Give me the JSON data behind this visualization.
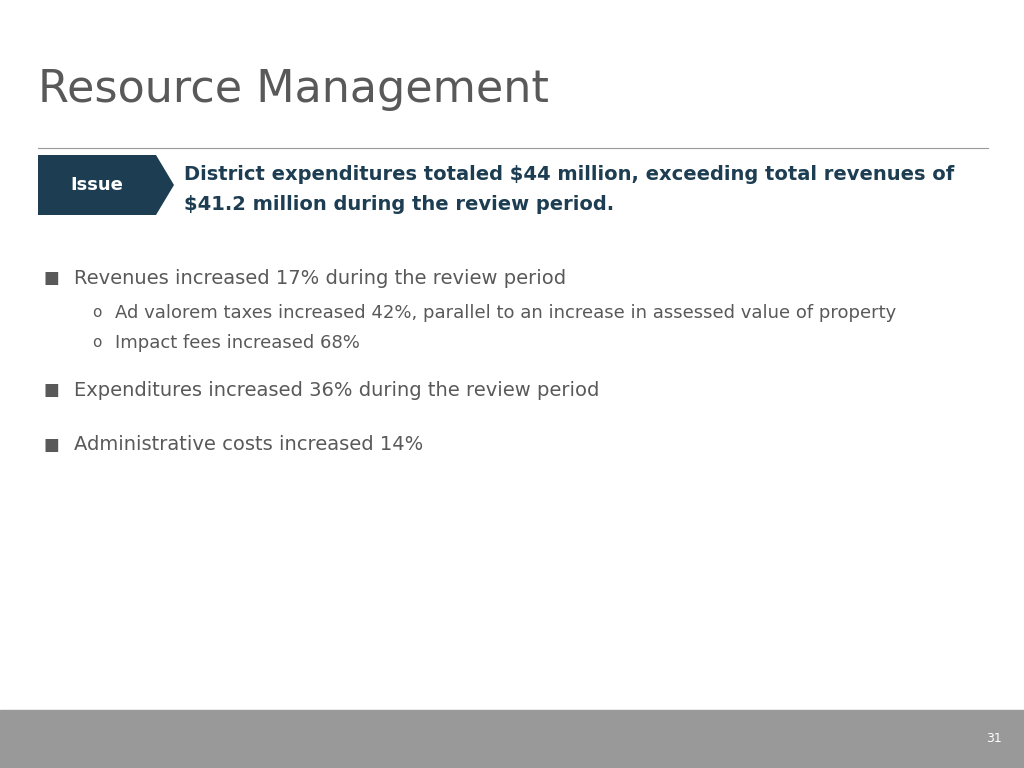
{
  "title": "Resource Management",
  "title_color": "#595959",
  "title_fontsize": 32,
  "background_color": "#ffffff",
  "footer_color": "#999999",
  "footer_text": "31",
  "separator_color": "#999999",
  "issue_box_color": "#1d3d52",
  "issue_box_text": "Issue",
  "issue_box_text_color": "#ffffff",
  "issue_text_line1": "District expenditures totaled $44 million, exceeding total revenues of",
  "issue_text_line2": "$41.2 million during the review period.",
  "issue_text_color": "#1d3d52",
  "issue_fontsize": 14,
  "bullet_color": "#595959",
  "bullet_fontsize": 14,
  "bullet1": "Revenues increased 17% during the review period",
  "sub_bullet1a": "Ad valorem taxes increased 42%, parallel to an increase in assessed value of property",
  "sub_bullet1b": "Impact fees increased 68%",
  "bullet2": "Expenditures increased 36% during the review period",
  "bullet3": "Administrative costs increased 14%"
}
